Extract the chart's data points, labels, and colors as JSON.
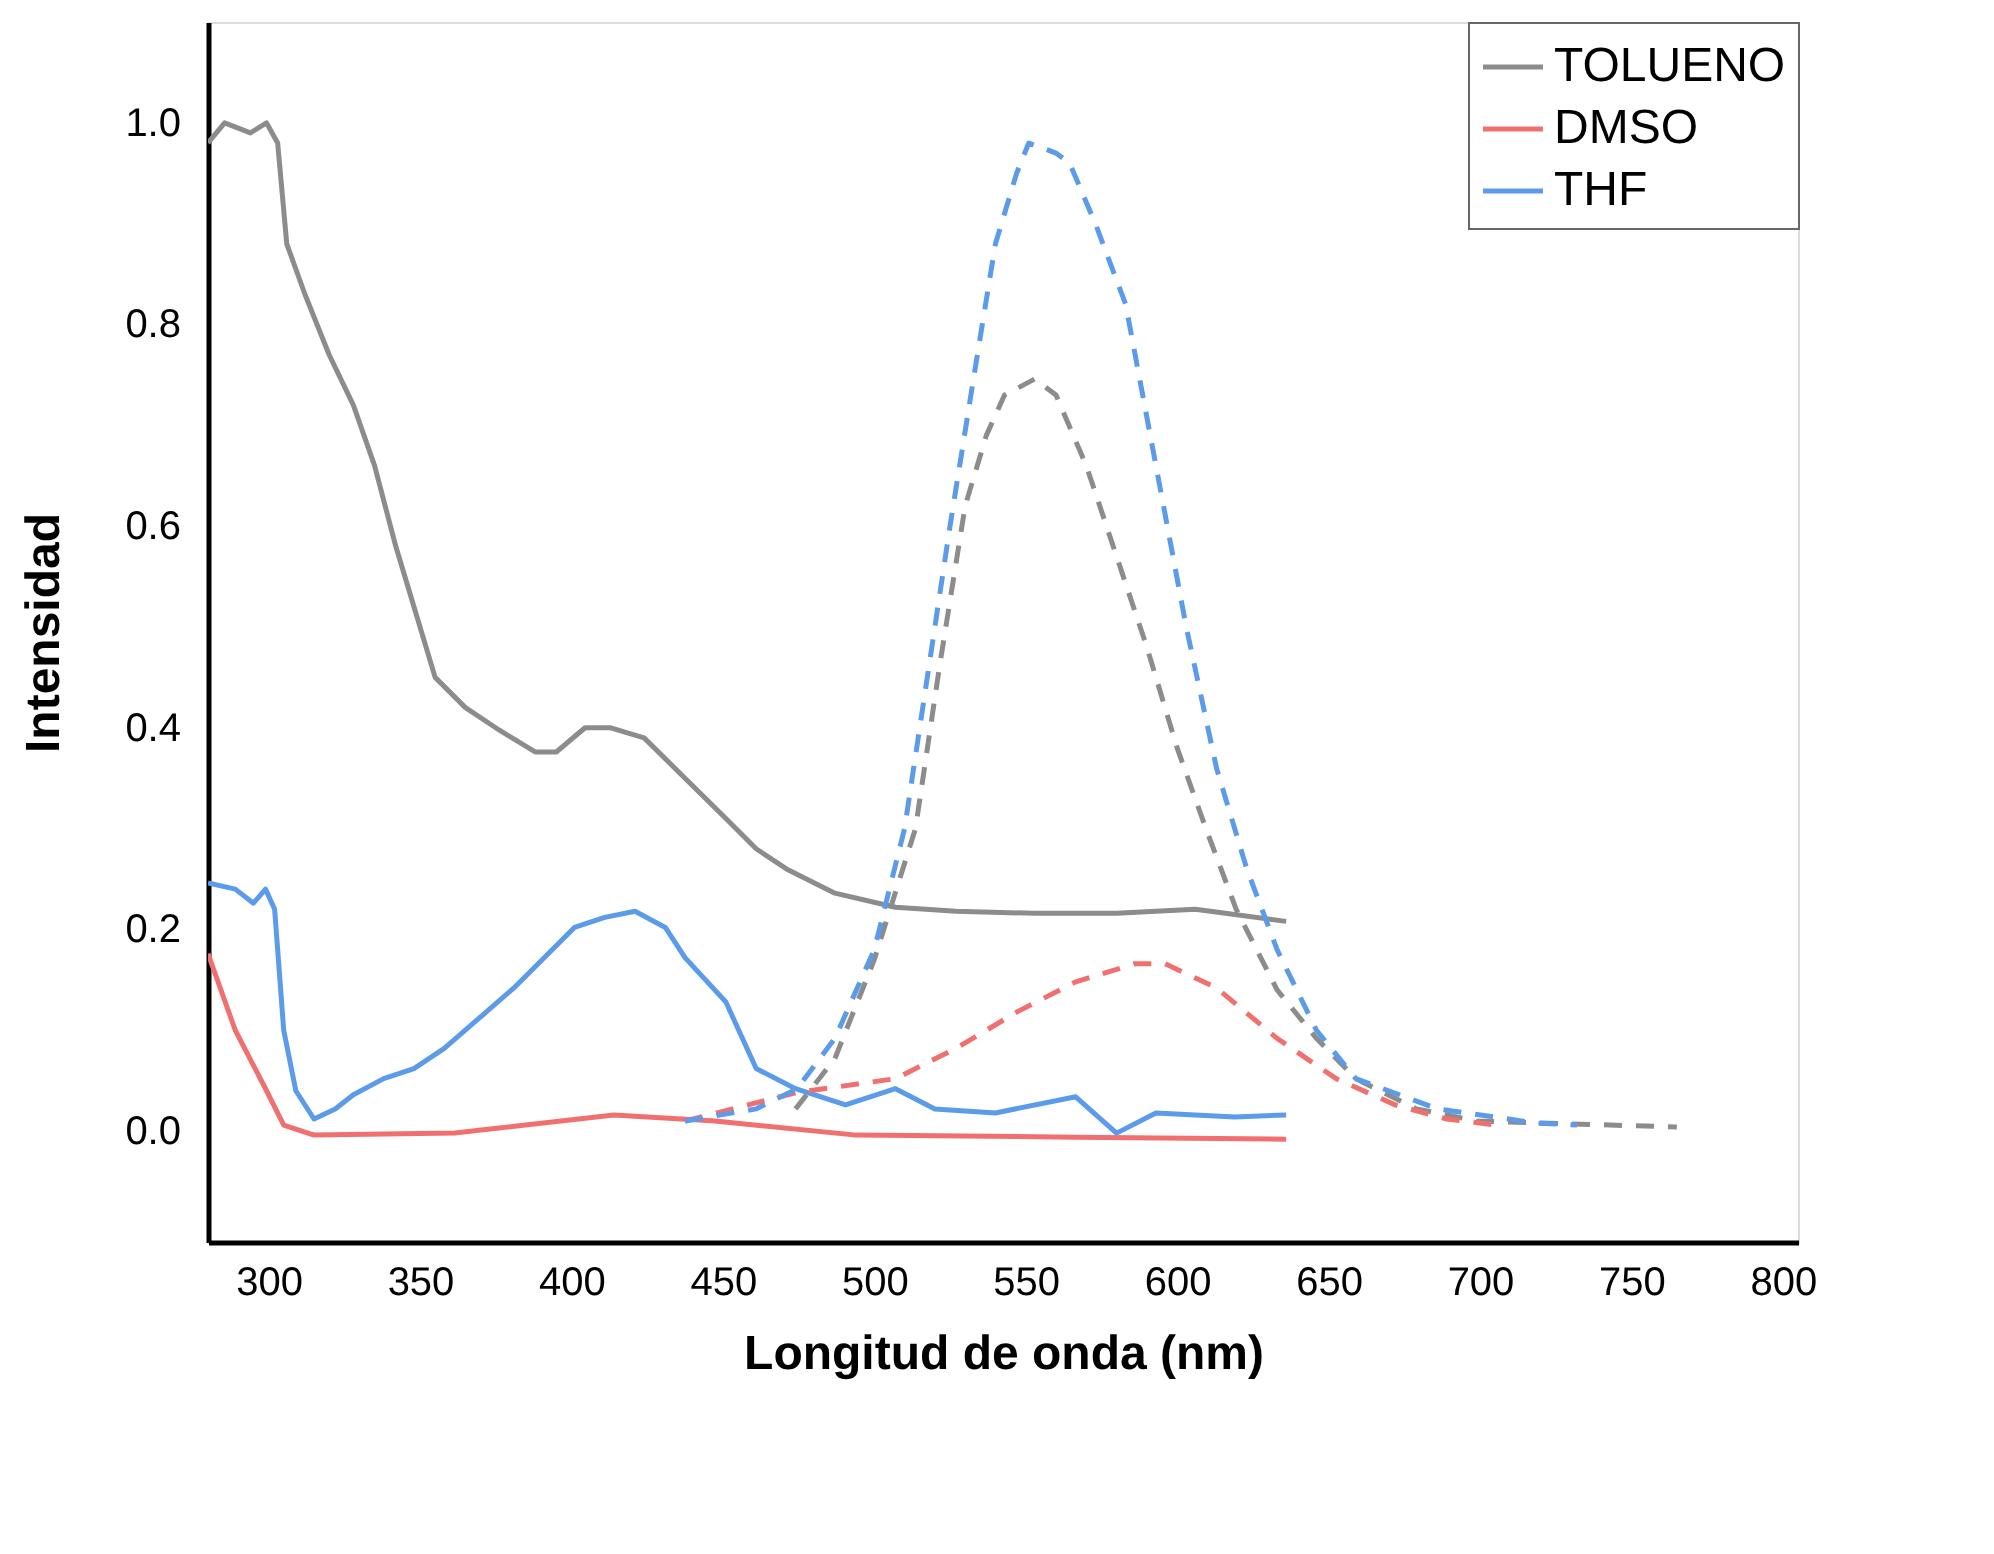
{
  "chart_data": {
    "type": "line",
    "xlabel": "Longitud de onda (nm)",
    "ylabel": "Intensidad",
    "xlim": [
      280,
      805
    ],
    "ylim": [
      -0.11,
      1.1
    ],
    "xticks": [
      300,
      350,
      400,
      450,
      500,
      550,
      600,
      650,
      700,
      750,
      800
    ],
    "yticks": [
      {
        "value": 0,
        "label": "0.0"
      },
      0.2,
      0.4,
      0.6,
      0.8,
      {
        "value": 1,
        "label": "1.0"
      }
    ],
    "grid": false,
    "legend": "top right",
    "marker": "none",
    "series": [
      {
        "name": "TOLUENO",
        "color": "#8c8c8c",
        "line_style": "solid",
        "x": [
          280,
          285.5,
          294,
          299.3,
          303,
          306,
          312,
          320,
          328,
          335,
          342,
          348,
          355,
          365,
          375,
          388,
          395,
          404.5,
          413,
          424,
          437.5,
          451,
          461,
          471,
          487,
          507,
          527,
          553,
          580,
          606,
          636
        ],
        "values": [
          0.98,
          1.0,
          0.99,
          1.0,
          0.98,
          0.88,
          0.83,
          0.77,
          0.72,
          0.66,
          0.58,
          0.52,
          0.45,
          0.42,
          0.4,
          0.376,
          0.376,
          0.4,
          0.4,
          0.39,
          0.35,
          0.31,
          0.28,
          0.26,
          0.236,
          0.222,
          0.218,
          0.216,
          0.216,
          0.22,
          0.208
        ]
      },
      {
        "name": "DMSO",
        "color": "#f07070",
        "line_style": "solid",
        "x": [
          280,
          289,
          299,
          305,
          315,
          361.5,
          414,
          447.5,
          494,
          566.5,
          636
        ],
        "values": [
          0.176,
          0.1,
          0.042,
          0.006,
          -0.004,
          -0.002,
          0.016,
          0.01,
          -0.004,
          -0.006,
          -0.008
        ]
      },
      {
        "name": "THF",
        "color": "#5b9bea",
        "line_style": "solid",
        "x": [
          280,
          289,
          295,
          299,
          302,
          305,
          309,
          315,
          322,
          328,
          338,
          348,
          358,
          368,
          381,
          391,
          401,
          411,
          421,
          431,
          437.5,
          451,
          461,
          474,
          490.5,
          507,
          520,
          540,
          566.5,
          580,
          593,
          619,
          636
        ],
        "values": [
          0.246,
          0.24,
          0.226,
          0.24,
          0.22,
          0.1,
          0.04,
          0.012,
          0.022,
          0.036,
          0.052,
          0.062,
          0.082,
          0.108,
          0.142,
          0.172,
          0.202,
          0.212,
          0.218,
          0.202,
          0.172,
          0.128,
          0.062,
          0.042,
          0.026,
          0.042,
          0.022,
          0.018,
          0.034,
          -0.002,
          0.018,
          0.014,
          0.016
        ]
      },
      {
        "color": "#8c8c8c",
        "line_style": "dashed",
        "x": [
          474,
          487,
          500,
          513.6,
          521.5,
          530,
          537,
          543,
          553,
          560,
          570,
          580,
          590,
          600,
          609.5,
          619.5,
          633,
          646,
          659,
          679,
          699,
          765
        ],
        "values": [
          0.022,
          0.072,
          0.17,
          0.3,
          0.46,
          0.62,
          0.69,
          0.73,
          0.746,
          0.73,
          0.66,
          0.57,
          0.48,
          0.38,
          0.3,
          0.22,
          0.14,
          0.092,
          0.052,
          0.022,
          0.01,
          0.004
        ]
      },
      {
        "color": "#f07070",
        "line_style": "dashed",
        "x": [
          437.5,
          474,
          507,
          527,
          547,
          566.5,
          586,
          596,
          613,
          633,
          652.5,
          672,
          689,
          705
        ],
        "values": [
          0.01,
          0.038,
          0.052,
          0.082,
          0.118,
          0.148,
          0.166,
          0.166,
          0.142,
          0.092,
          0.052,
          0.026,
          0.012,
          0.006
        ]
      },
      {
        "color": "#5b9bea",
        "line_style": "dashed",
        "x": [
          437.5,
          461,
          474.5,
          487,
          500,
          510,
          518,
          525,
          533.5,
          540,
          547,
          551,
          560,
          564.5,
          573,
          583,
          593,
          603,
          613,
          623,
          633,
          646,
          659,
          686,
          718.6,
          732
        ],
        "values": [
          0.01,
          0.022,
          0.042,
          0.092,
          0.18,
          0.3,
          0.46,
          0.6,
          0.76,
          0.88,
          0.95,
          0.98,
          0.97,
          0.96,
          0.9,
          0.82,
          0.66,
          0.5,
          0.36,
          0.26,
          0.18,
          0.1,
          0.052,
          0.022,
          0.008,
          0.006
        ]
      }
    ]
  }
}
